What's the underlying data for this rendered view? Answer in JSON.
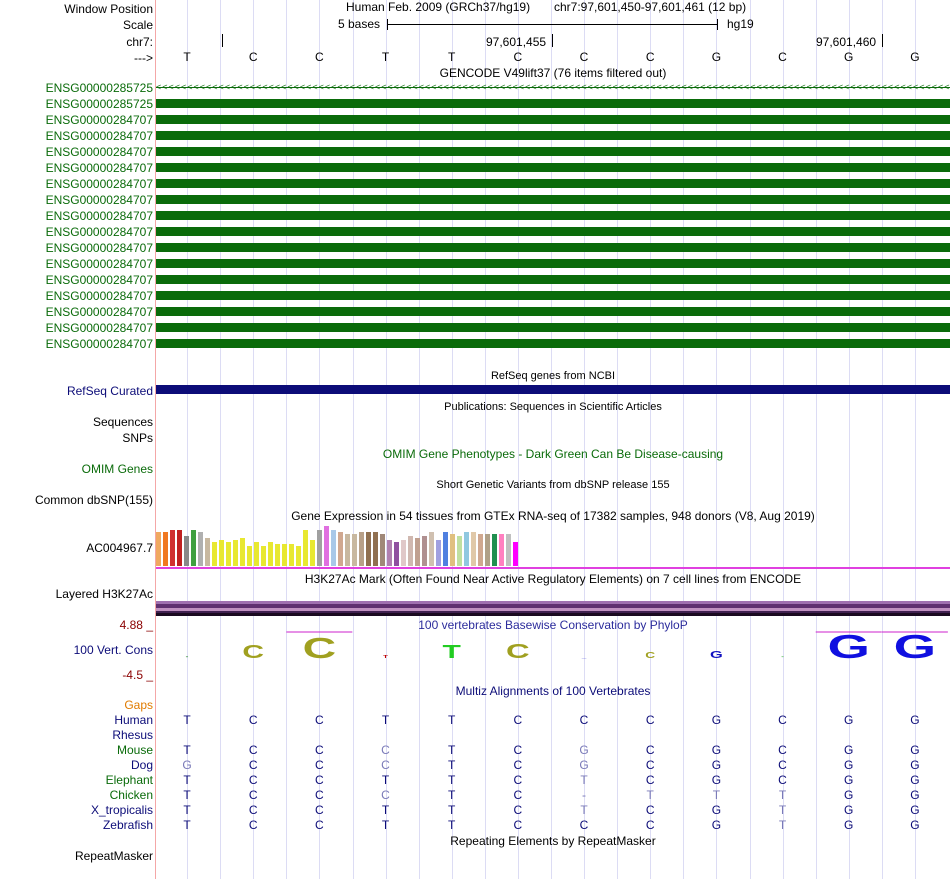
{
  "header": {
    "window_position_label": "Window Position",
    "assembly": "Human Feb. 2009 (GRCh37/hg19)",
    "position": "chr7:97,601,450-97,601,461 (12 bp)",
    "scale_label": "Scale",
    "scale_value": "5 bases",
    "scale_db": "hg19",
    "chrom_label": "chr7:",
    "coord1": "97,601,455",
    "coord2": "97,601,460",
    "arrow_label": "--->"
  },
  "colors": {
    "gene": "#0a6b0a",
    "refseq": "#0c0c78",
    "gaps": "#e07b00",
    "rhesus": "#0c0c78",
    "human": "#0c0c78",
    "other_species": "#0a6b0a",
    "red_label": "#8b0000",
    "separator": "#f4a7a7"
  },
  "sequence": [
    "T",
    "C",
    "C",
    "T",
    "T",
    "C",
    "C",
    "C",
    "G",
    "C",
    "G",
    "G"
  ],
  "gencode": {
    "title": "GENCODE V49lift37 (76 items filtered out)",
    "genes": [
      "ENSG00000285725",
      "ENSG00000285725",
      "ENSG00000284707",
      "ENSG00000284707",
      "ENSG00000284707",
      "ENSG00000284707",
      "ENSG00000284707",
      "ENSG00000284707",
      "ENSG00000284707",
      "ENSG00000284707",
      "ENSG00000284707",
      "ENSG00000284707",
      "ENSG00000284707",
      "ENSG00000284707",
      "ENSG00000284707",
      "ENSG00000284707",
      "ENSG00000284707"
    ]
  },
  "refseq": {
    "title": "RefSeq genes from NCBI",
    "label": "RefSeq Curated"
  },
  "publications": {
    "title": "Publications: Sequences in Scientific Articles"
  },
  "sequences": {
    "label": "Sequences"
  },
  "snps": {
    "label": "SNPs"
  },
  "omim": {
    "title": "OMIM Gene Phenotypes - Dark Green Can Be Disease-causing",
    "label": "OMIM Genes"
  },
  "dbsnp": {
    "title": "Short Genetic Variants from dbSNP release 155",
    "label": "Common dbSNP(155)"
  },
  "gtex": {
    "title": "Gene Expression in 54 tissues from GTEx RNA-seq of 17382 samples, 948 donors (V8, Aug 2019)",
    "label": "AC004967.7",
    "bars": [
      {
        "v": 34,
        "c": "#f0a860"
      },
      {
        "v": 34,
        "c": "#f07820"
      },
      {
        "v": 36,
        "c": "#d03030"
      },
      {
        "v": 36,
        "c": "#c02020"
      },
      {
        "v": 30,
        "c": "#888888"
      },
      {
        "v": 36,
        "c": "#40a040"
      },
      {
        "v": 34,
        "c": "#b0b0b0"
      },
      {
        "v": 28,
        "c": "#c8b8a0"
      },
      {
        "v": 24,
        "c": "#e8e830"
      },
      {
        "v": 26,
        "c": "#e8e830"
      },
      {
        "v": 24,
        "c": "#e8e830"
      },
      {
        "v": 26,
        "c": "#e8e830"
      },
      {
        "v": 28,
        "c": "#e8e830"
      },
      {
        "v": 20,
        "c": "#e8e830"
      },
      {
        "v": 24,
        "c": "#e8e830"
      },
      {
        "v": 20,
        "c": "#e8e830"
      },
      {
        "v": 24,
        "c": "#e8e830"
      },
      {
        "v": 22,
        "c": "#e8e830"
      },
      {
        "v": 22,
        "c": "#e8e830"
      },
      {
        "v": 22,
        "c": "#e8e830"
      },
      {
        "v": 20,
        "c": "#e8e830"
      },
      {
        "v": 36,
        "c": "#e8e830"
      },
      {
        "v": 26,
        "c": "#e8e830"
      },
      {
        "v": 36,
        "c": "#a0a0a0"
      },
      {
        "v": 40,
        "c": "#e070e0"
      },
      {
        "v": 36,
        "c": "#a8c8e8"
      },
      {
        "v": 34,
        "c": "#d0a890"
      },
      {
        "v": 32,
        "c": "#c8b8a0"
      },
      {
        "v": 32,
        "c": "#c8b8a0"
      },
      {
        "v": 34,
        "c": "#b8a088"
      },
      {
        "v": 34,
        "c": "#907050"
      },
      {
        "v": 34,
        "c": "#907050"
      },
      {
        "v": 32,
        "c": "#a08878"
      },
      {
        "v": 26,
        "c": "#b080b0"
      },
      {
        "v": 24,
        "c": "#9050a0"
      },
      {
        "v": 26,
        "c": "#e0c8c8"
      },
      {
        "v": 30,
        "c": "#d0b8b0"
      },
      {
        "v": 28,
        "c": "#c0a090"
      },
      {
        "v": 30,
        "c": "#b09090"
      },
      {
        "v": 34,
        "c": "#d0c0b0"
      },
      {
        "v": 26,
        "c": "#a0a0e0"
      },
      {
        "v": 34,
        "c": "#5080e0"
      },
      {
        "v": 32,
        "c": "#e0c080"
      },
      {
        "v": 30,
        "c": "#c0e0a0"
      },
      {
        "v": 34,
        "c": "#90c8e0"
      },
      {
        "v": 34,
        "c": "#e0c8a8"
      },
      {
        "v": 32,
        "c": "#d0a890"
      },
      {
        "v": 32,
        "c": "#b0a088"
      },
      {
        "v": 32,
        "c": "#209050"
      },
      {
        "v": 32,
        "c": "#ff80c0"
      },
      {
        "v": 32,
        "c": "#c0c0c0"
      },
      {
        "v": 24,
        "c": "#ff00ff"
      }
    ]
  },
  "h3k27ac": {
    "title": "H3K27Ac Mark (Often Found Near Active Regulatory Elements) on 7 cell lines from ENCODE",
    "label": "Layered H3K27Ac"
  },
  "cons": {
    "title": "100 vertebrates Basewise Conservation by PhyloP",
    "label": "100 Vert. Cons",
    "max": "4.88 _",
    "min": "-4.5 _"
  },
  "multiz": {
    "title": "Multiz Alignments of 100 Vertebrates",
    "gaps_label": "Gaps",
    "species": [
      {
        "name": "Human",
        "bases": [
          "T",
          "C",
          "C",
          "T",
          "T",
          "C",
          "C",
          "C",
          "G",
          "C",
          "G",
          "G"
        ],
        "faint": []
      },
      {
        "name": "Rhesus",
        "bases": [],
        "faint": []
      },
      {
        "name": "Mouse",
        "bases": [
          "T",
          "C",
          "C",
          "C",
          "T",
          "C",
          "G",
          "C",
          "G",
          "C",
          "G",
          "G"
        ],
        "faint": [
          3,
          6
        ]
      },
      {
        "name": "Dog",
        "bases": [
          "G",
          "C",
          "C",
          "C",
          "T",
          "C",
          "G",
          "C",
          "G",
          "C",
          "G",
          "G"
        ],
        "faint": [
          0,
          3,
          6
        ]
      },
      {
        "name": "Elephant",
        "bases": [
          "T",
          "C",
          "C",
          "T",
          "T",
          "C",
          "T",
          "C",
          "G",
          "C",
          "G",
          "G"
        ],
        "faint": [
          6
        ]
      },
      {
        "name": "Chicken",
        "bases": [
          "T",
          "C",
          "C",
          "C",
          "T",
          "C",
          "-",
          "T",
          "T",
          "T",
          "G",
          "G"
        ],
        "faint": [
          3,
          6,
          7,
          8,
          9
        ]
      },
      {
        "name": "X_tropicalis",
        "bases": [
          "T",
          "C",
          "C",
          "T",
          "T",
          "C",
          "T",
          "C",
          "G",
          "T",
          "G",
          "G"
        ],
        "faint": [
          6,
          9
        ]
      },
      {
        "name": "Zebrafish",
        "bases": [
          "T",
          "C",
          "C",
          "T",
          "T",
          "C",
          "C",
          "C",
          "G",
          "T",
          "G",
          "G"
        ],
        "faint": [
          9
        ]
      }
    ]
  },
  "repeatmasker": {
    "title": "Repeating Elements by RepeatMasker",
    "label": "RepeatMasker"
  }
}
